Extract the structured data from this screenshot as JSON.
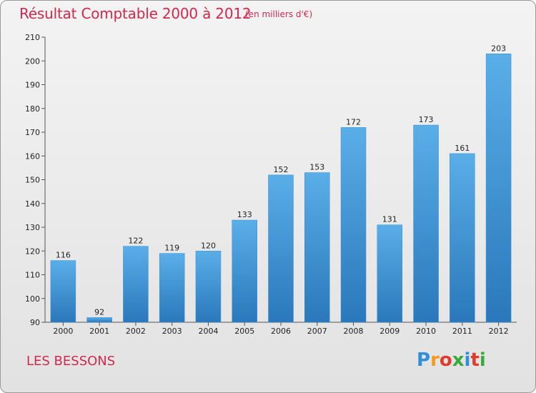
{
  "chart_data": {
    "type": "bar",
    "title": "Résultat Comptable 2000 à 2012",
    "subtitle": "(en milliers d'€)",
    "categories": [
      "2000",
      "2001",
      "2002",
      "2003",
      "2004",
      "2005",
      "2006",
      "2007",
      "2008",
      "2009",
      "2010",
      "2011",
      "2012"
    ],
    "values": [
      116,
      92,
      122,
      119,
      120,
      133,
      152,
      153,
      172,
      131,
      173,
      161,
      203
    ],
    "ylim": [
      90,
      210
    ],
    "yticks": [
      90,
      100,
      110,
      120,
      130,
      140,
      150,
      160,
      170,
      180,
      190,
      200,
      210
    ],
    "xlabel": "",
    "ylabel": "",
    "grid": false
  },
  "footer": {
    "town": "LES BESSONS",
    "logo_letters": [
      "P",
      "r",
      "o",
      "x",
      "i",
      "t",
      "i"
    ]
  },
  "colors": {
    "title": "#d1284e",
    "bar_top": "#5aaee8",
    "bar_bottom": "#2a78bb",
    "logo": [
      "#2f8fd8",
      "#f39a1d",
      "#e23b2e",
      "#3aa93a",
      "#2f8fd8",
      "#e23b2e",
      "#3aa93a"
    ]
  }
}
